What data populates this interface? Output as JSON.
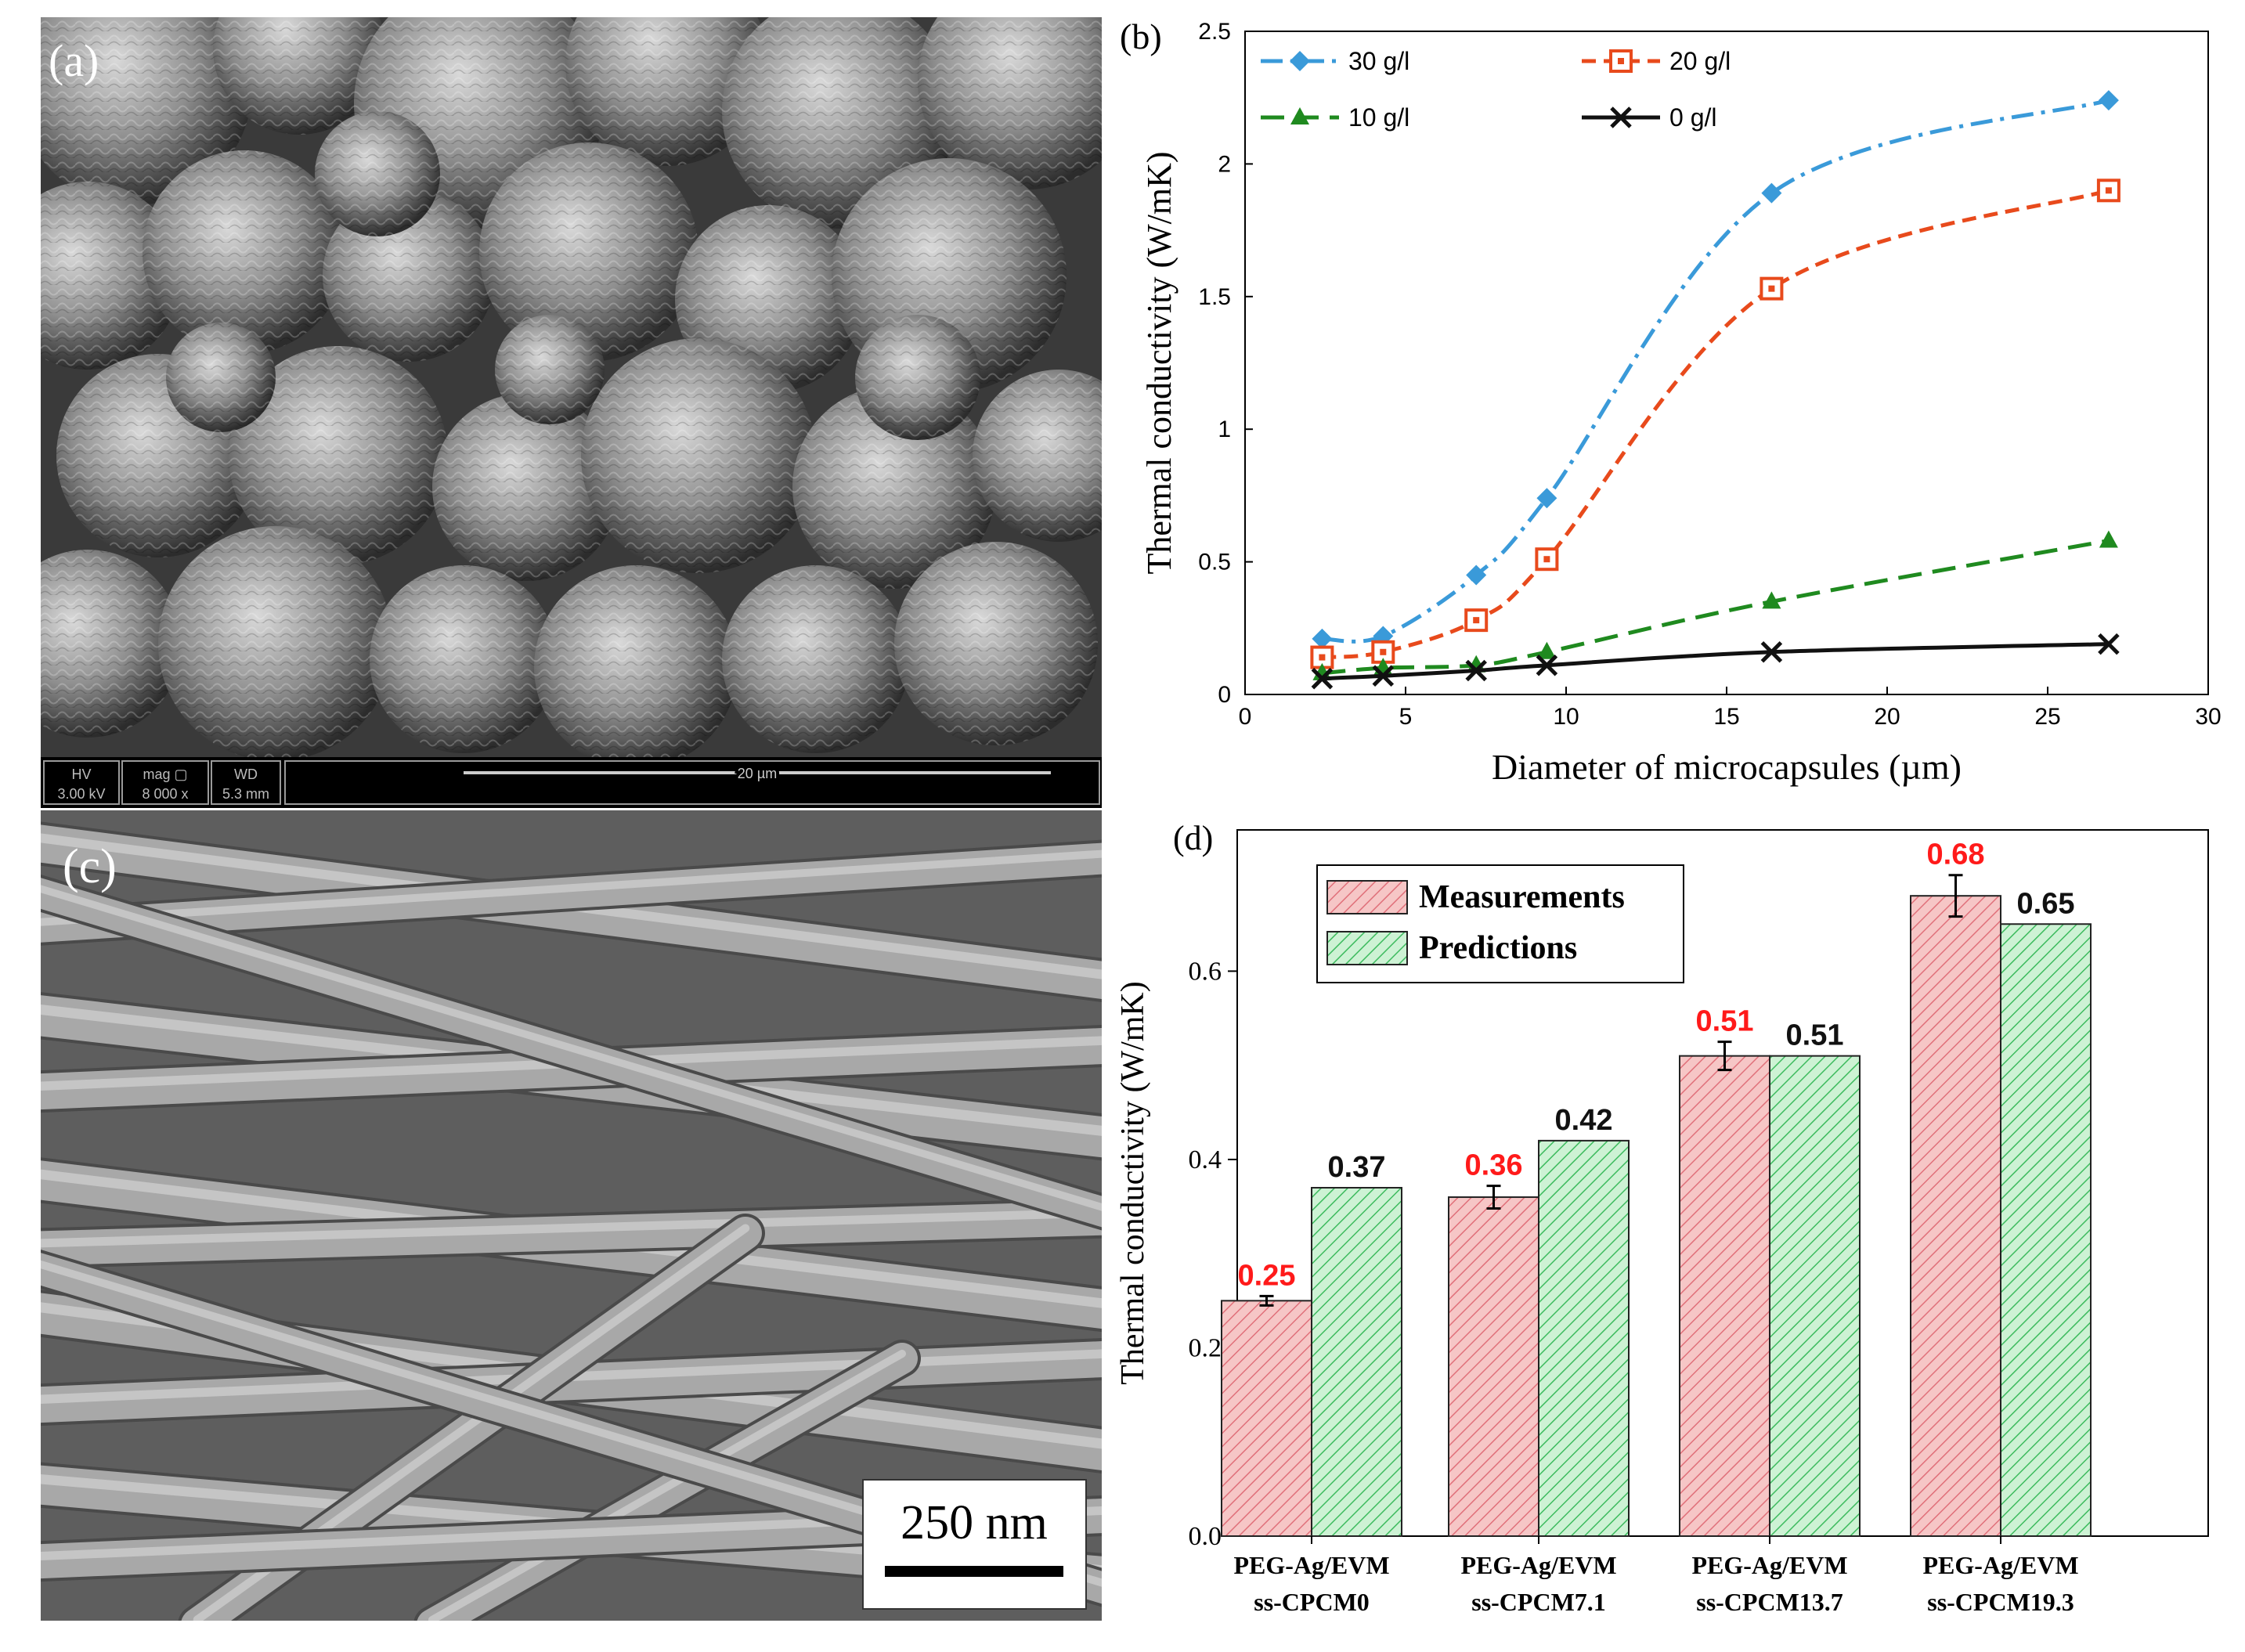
{
  "figure": {
    "panels": [
      {
        "label": "(a)",
        "type": "sem-image",
        "description_text": {
          "info_bar": {
            "hv_label": "HV",
            "hv_value": "3.00 kV",
            "mag_label": "mag ▢",
            "mag_value": "8 000 x",
            "wd_label": "WD",
            "wd_value": "5.3 mm",
            "scale_label": "20 µm"
          }
        }
      },
      {
        "label": "(b)"
      },
      {
        "label": "(c)",
        "type": "sem-image",
        "scale_label": "250 nm"
      },
      {
        "label": "(d)"
      }
    ]
  },
  "chart_data": [
    {
      "panel": "(b)",
      "type": "line",
      "xlabel": "Diameter of microcapsules (µm)",
      "ylabel": "Thermal conductivity (W/mK)",
      "xlim": [
        0,
        30
      ],
      "ylim": [
        0,
        2.5
      ],
      "xticks": [
        "0",
        "5",
        "10",
        "15",
        "20",
        "25",
        "30"
      ],
      "yticks": [
        "0",
        "0.5",
        "1",
        "1.5",
        "2",
        "2.5"
      ],
      "legend_position": "top-left",
      "x": [
        2.4,
        4.3,
        7.2,
        9.4,
        16.4,
        26.9
      ],
      "series": [
        {
          "name": "30 g/l",
          "color": "#3a9ad9",
          "marker": "diamond",
          "dash": "dashdot",
          "values": [
            0.21,
            0.22,
            0.45,
            0.74,
            1.89,
            2.24
          ]
        },
        {
          "name": "20 g/l",
          "color": "#e84a1c",
          "marker": "square-open",
          "dash": "dashed",
          "values": [
            0.14,
            0.16,
            0.28,
            0.51,
            1.53,
            1.9
          ]
        },
        {
          "name": "10 g/l",
          "color": "#1f8a1f",
          "marker": "triangle",
          "dash": "longdash",
          "values": [
            0.08,
            0.1,
            0.11,
            0.16,
            0.35,
            0.58
          ]
        },
        {
          "name": "0 g/l",
          "color": "#111111",
          "marker": "x",
          "dash": "solid",
          "values": [
            0.06,
            0.07,
            0.09,
            0.11,
            0.16,
            0.19
          ]
        }
      ]
    },
    {
      "panel": "(d)",
      "type": "bar",
      "ylabel": "Thermal conductivity (W/mK)",
      "ylim": [
        0,
        0.75
      ],
      "yticks": [
        "0.0",
        "0.2",
        "0.4",
        "0.6"
      ],
      "legend_position": "top-left",
      "categories": [
        {
          "line1": "PEG-Ag/EVM",
          "line2": "ss-CPCM0"
        },
        {
          "line1": "PEG-Ag/EVM",
          "line2": "ss-CPCM7.1"
        },
        {
          "line1": "PEG-Ag/EVM",
          "line2": "ss-CPCM13.7"
        },
        {
          "line1": "PEG-Ag/EVM",
          "line2": "ss-CPCM19.3"
        }
      ],
      "series": [
        {
          "name": "Measurements",
          "fill": "#f6c6c6",
          "hatch": "#e0707a",
          "label_color": "#ff1a1a",
          "values": [
            0.25,
            0.36,
            0.51,
            0.68
          ],
          "errors": [
            0.005,
            0.012,
            0.015,
            0.022
          ],
          "labels": [
            "0.25",
            "0.36",
            "0.51",
            "0.68"
          ]
        },
        {
          "name": "Predictions",
          "fill": "#cdf2d4",
          "hatch": "#3dbb5e",
          "label_color": "#111111",
          "values": [
            0.37,
            0.42,
            0.51,
            0.65
          ],
          "labels": [
            "0.37",
            "0.42",
            "0.51",
            "0.65"
          ]
        }
      ]
    }
  ]
}
